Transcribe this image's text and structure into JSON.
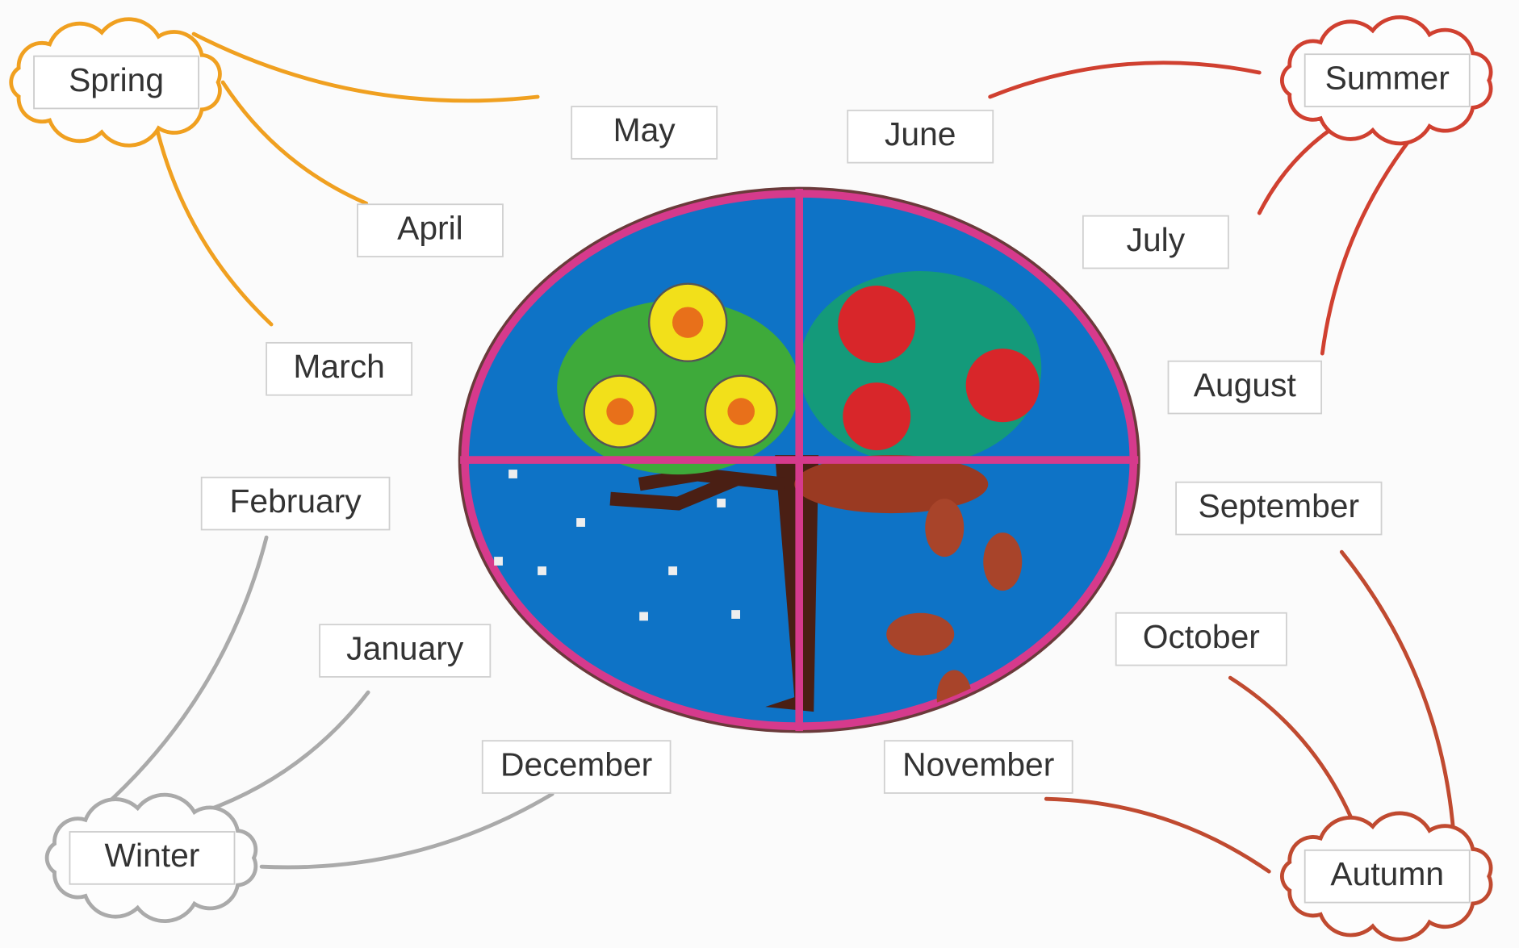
{
  "seasons": [
    {
      "label": "Spring"
    },
    {
      "label": "Summer"
    },
    {
      "label": "Autumn"
    },
    {
      "label": "Winter"
    }
  ],
  "months": [
    "January",
    "February",
    "March",
    "April",
    "May",
    "June",
    "July",
    "August",
    "September",
    "October",
    "November",
    "December"
  ]
}
